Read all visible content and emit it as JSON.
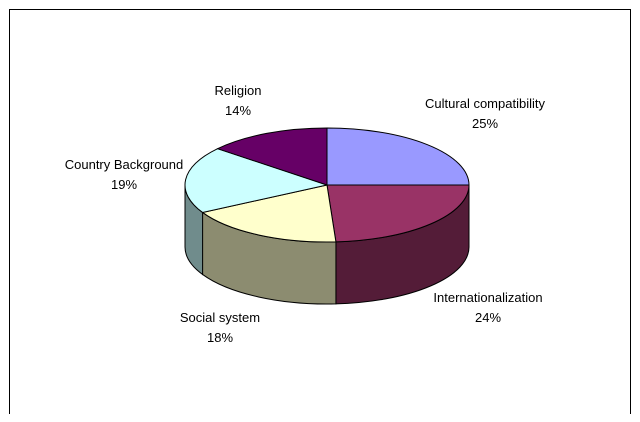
{
  "chart_data": {
    "type": "pie",
    "title": "",
    "three_d": true,
    "slices": [
      {
        "label": "Cultural compatibility",
        "percent_label": "25%",
        "value": 25,
        "color": "#9999ff"
      },
      {
        "label": "Internationalization",
        "percent_label": "24%",
        "value": 24,
        "color": "#993366"
      },
      {
        "label": "Social system",
        "percent_label": "18%",
        "value": 18,
        "color": "#ffffcc"
      },
      {
        "label": "Country Background",
        "percent_label": "19%",
        "value": 19,
        "color": "#ccffff"
      },
      {
        "label": "Religion",
        "percent_label": "14%",
        "value": 14,
        "color": "#660066"
      }
    ],
    "legend": "none"
  }
}
